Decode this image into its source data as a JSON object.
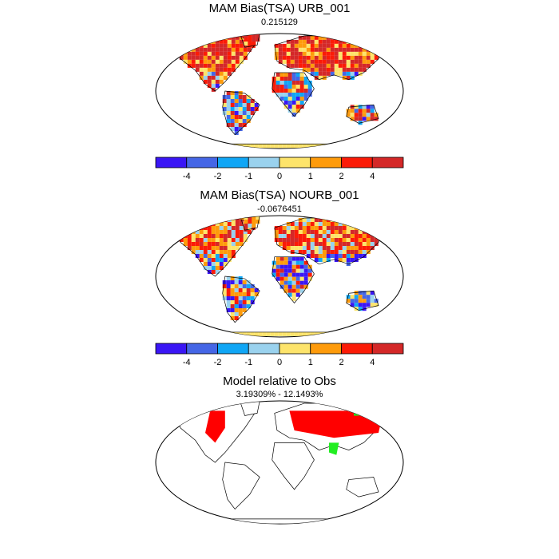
{
  "panels": [
    {
      "title": "MAM Bias(TSA) URB_001",
      "subtitle": "0.215129",
      "type": "bias_map"
    },
    {
      "title": "MAM Bias(TSA) NOURB_001",
      "subtitle": "-0.0676451",
      "type": "bias_map"
    },
    {
      "title": "Model relative to Obs",
      "subtitle": "3.19309% - 12.1493%",
      "type": "relative_map",
      "colors": {
        "model_worse": "#ff0000",
        "model_better": "#22ee22"
      }
    }
  ],
  "colorbar": {
    "tick_labels": [
      "-4",
      "-2",
      "-1",
      "0",
      "1",
      "2",
      "4"
    ],
    "colors": [
      "#3a16f5",
      "#4566e6",
      "#10a6f5",
      "#9ad2ee",
      "#fde46b",
      "#fe9b0b",
      "#fb1b07",
      "#d42828"
    ]
  },
  "map_style": {
    "outline": "#000000",
    "land_default": "#f7b24a"
  }
}
